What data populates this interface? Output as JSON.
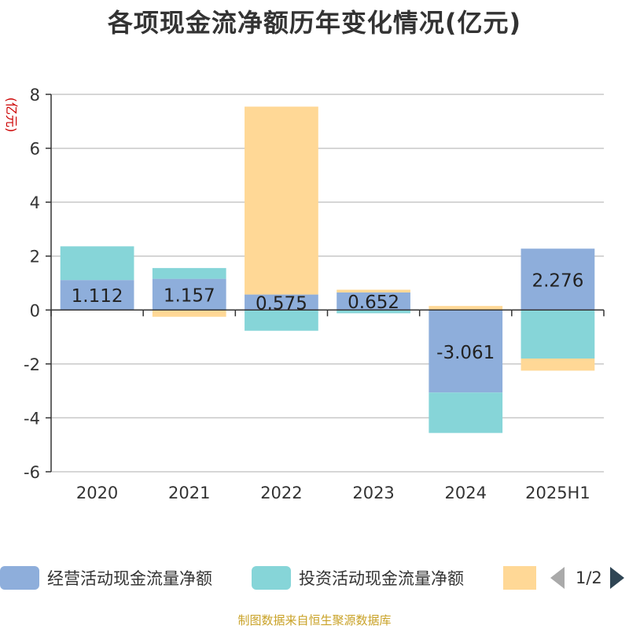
{
  "title": "各项现金流净额历年变化情况(亿元)",
  "source": "制图数据来自恒生聚源数据库",
  "legend": {
    "items": [
      {
        "label": "经营活动现金流量净额",
        "color": "#8eaedb"
      },
      {
        "label": "投资活动现金流量净额",
        "color": "#86d5d8"
      },
      {
        "label": "",
        "color": "#ffd896"
      }
    ],
    "page_indicator": "1/2"
  },
  "chart_data": {
    "type": "bar",
    "stacked": true,
    "ylabel": "(亿元)",
    "ylim": [
      -6,
      8
    ],
    "yticks": [
      8,
      6,
      4,
      2,
      0,
      -2,
      -4,
      -6
    ],
    "grid": true,
    "categories": [
      "2020",
      "2021",
      "2022",
      "2023",
      "2024",
      "2025H1"
    ],
    "series": [
      {
        "name": "经营活动现金流量净额",
        "color": "#8eaedb",
        "values": [
          1.112,
          1.157,
          0.575,
          0.652,
          -3.061,
          2.276
        ],
        "labels": [
          "1.112",
          "1.157",
          "0.575",
          "0.652",
          "-3.061",
          "2.276"
        ]
      },
      {
        "name": "投资活动现金流量净额",
        "color": "#86d5d8",
        "values": [
          1.25,
          0.4,
          -0.77,
          -0.12,
          -1.5,
          -1.8
        ]
      },
      {
        "color": "#ffd896",
        "values": [
          0.0,
          -0.25,
          6.97,
          0.1,
          0.15,
          -0.45
        ]
      }
    ]
  }
}
